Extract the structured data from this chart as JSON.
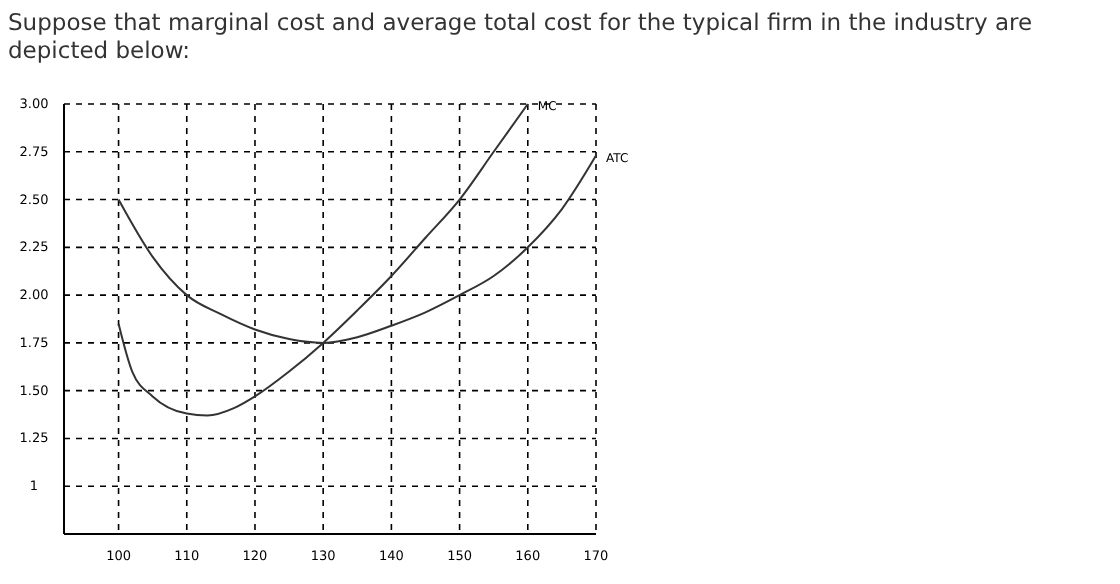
{
  "chart_data": {
    "type": "line",
    "title": "Suppose that marginal cost and average total cost for the typical firm in the industry are depicted below:",
    "xlim": [
      92,
      170
    ],
    "xticks": [
      100,
      110,
      120,
      130,
      140,
      150,
      160,
      170
    ],
    "ylim": [
      0.75,
      3
    ],
    "yticks": [
      1,
      {
        "value": 1.25,
        "label": "1.25"
      },
      {
        "value": 1.5,
        "label": "1.50"
      },
      {
        "value": 1.75,
        "label": "1.75"
      },
      {
        "value": 2,
        "label": "2.00"
      },
      {
        "value": 2.25,
        "label": "2.25"
      },
      {
        "value": 2.5,
        "label": "2.50"
      },
      {
        "value": 2.75,
        "label": "2.75"
      },
      {
        "value": 3,
        "label": "3.00"
      }
    ],
    "grid": true,
    "legend": false,
    "marker": "none",
    "line_style": "solid",
    "series": [
      {
        "name": "MC",
        "color": "#333333",
        "x": [
          100,
          102,
          105,
          110,
          113,
          117,
          120,
          125,
          130,
          135,
          140,
          145,
          150,
          155,
          160
        ],
        "values": [
          1.85,
          1.6,
          1.47,
          1.38,
          1.37,
          1.41,
          1.47,
          1.6,
          1.75,
          1.92,
          2.1,
          2.3,
          2.5,
          2.75,
          3.0
        ]
      },
      {
        "name": "ATC",
        "color": "#333333",
        "x": [
          100,
          105,
          110,
          115,
          120,
          125,
          130,
          135,
          140,
          145,
          150,
          155,
          160,
          165,
          170
        ],
        "values": [
          2.5,
          2.2,
          2.0,
          1.9,
          1.82,
          1.77,
          1.75,
          1.78,
          1.84,
          1.91,
          2.0,
          2.1,
          2.25,
          2.45,
          2.73
        ]
      }
    ]
  }
}
